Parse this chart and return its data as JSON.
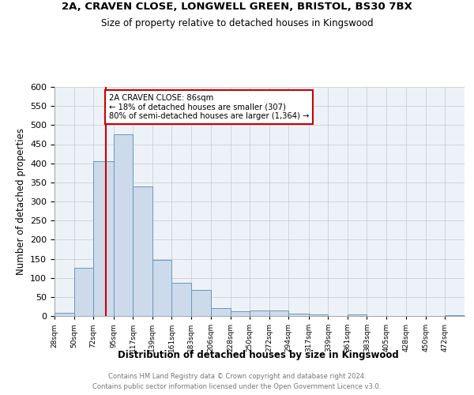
{
  "title1": "2A, CRAVEN CLOSE, LONGWELL GREEN, BRISTOL, BS30 7BX",
  "title2": "Size of property relative to detached houses in Kingswood",
  "xlabel": "Distribution of detached houses by size in Kingswood",
  "ylabel": "Number of detached properties",
  "bar_color": "#ccdaeb",
  "bar_edge_color": "#6699bb",
  "property_line_x": 86,
  "annotation_title": "2A CRAVEN CLOSE: 86sqm",
  "annotation_line1": "← 18% of detached houses are smaller (307)",
  "annotation_line2": "80% of semi-detached houses are larger (1,364) →",
  "annotation_box_color": "#cc0000",
  "footer1": "Contains HM Land Registry data © Crown copyright and database right 2024.",
  "footer2": "Contains public sector information licensed under the Open Government Licence v3.0.",
  "bin_edges": [
    28,
    50,
    72,
    95,
    117,
    139,
    161,
    183,
    206,
    228,
    250,
    272,
    294,
    317,
    339,
    361,
    383,
    405,
    428,
    450,
    472,
    494
  ],
  "bin_labels": [
    "28sqm",
    "50sqm",
    "72sqm",
    "95sqm",
    "117sqm",
    "139sqm",
    "161sqm",
    "183sqm",
    "206sqm",
    "228sqm",
    "250sqm",
    "272sqm",
    "294sqm",
    "317sqm",
    "339sqm",
    "361sqm",
    "383sqm",
    "405sqm",
    "428sqm",
    "450sqm",
    "472sqm"
  ],
  "bar_heights": [
    8,
    127,
    405,
    475,
    340,
    146,
    87,
    68,
    20,
    13,
    15,
    15,
    6,
    5,
    0,
    4,
    0,
    0,
    1,
    0,
    3
  ],
  "ylim": [
    0,
    600
  ],
  "yticks": [
    0,
    50,
    100,
    150,
    200,
    250,
    300,
    350,
    400,
    450,
    500,
    550,
    600
  ]
}
